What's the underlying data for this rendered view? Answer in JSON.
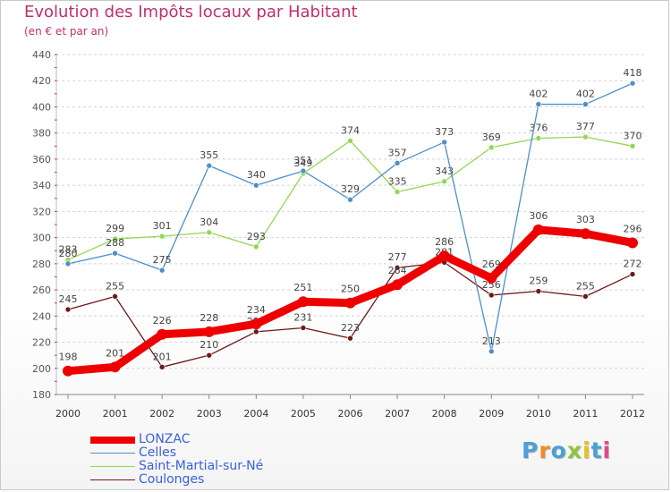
{
  "chart_data": {
    "type": "line",
    "title": "Evolution des Impôts locaux par Habitant",
    "subtitle": "(en € et par an)",
    "xlabel": "",
    "ylabel": "",
    "categories": [
      "2000",
      "2001",
      "2002",
      "2003",
      "2004",
      "2005",
      "2006",
      "2007",
      "2008",
      "2009",
      "2010",
      "2011",
      "2012"
    ],
    "ylim": [
      180,
      440
    ],
    "yticks": [
      180,
      200,
      220,
      240,
      260,
      280,
      300,
      320,
      340,
      360,
      380,
      400,
      420,
      440
    ],
    "grid": "horizontal-dashed",
    "series": [
      {
        "name": "Coulonges",
        "color": "#6b1a1a",
        "values": [
          245,
          255,
          201,
          210,
          228,
          231,
          223,
          277,
          281,
          256,
          259,
          255,
          272
        ]
      },
      {
        "name": "Saint-Martial-sur-Né",
        "color": "#94d654",
        "values": [
          283,
          299,
          301,
          304,
          293,
          349,
          374,
          335,
          343,
          369,
          376,
          377,
          370
        ]
      },
      {
        "name": "Celles",
        "color": "#4f8ec9",
        "values": [
          280,
          288,
          275,
          355,
          340,
          351,
          329,
          357,
          373,
          213,
          402,
          402,
          418
        ]
      },
      {
        "name": "LONZAC",
        "color": "#ee0000",
        "values": [
          198,
          201,
          226,
          228,
          234,
          251,
          250,
          264,
          286,
          269,
          306,
          303,
          296
        ]
      }
    ]
  },
  "legend": {
    "items": [
      {
        "label": "LONZAC",
        "color": "#ee0000"
      },
      {
        "label": "Celles",
        "color": "#4f8ec9"
      },
      {
        "label": "Saint-Martial-sur-Né",
        "color": "#94d654"
      },
      {
        "label": "Coulonges",
        "color": "#6b1a1a"
      }
    ]
  },
  "logo": {
    "text": "Proxiti"
  }
}
